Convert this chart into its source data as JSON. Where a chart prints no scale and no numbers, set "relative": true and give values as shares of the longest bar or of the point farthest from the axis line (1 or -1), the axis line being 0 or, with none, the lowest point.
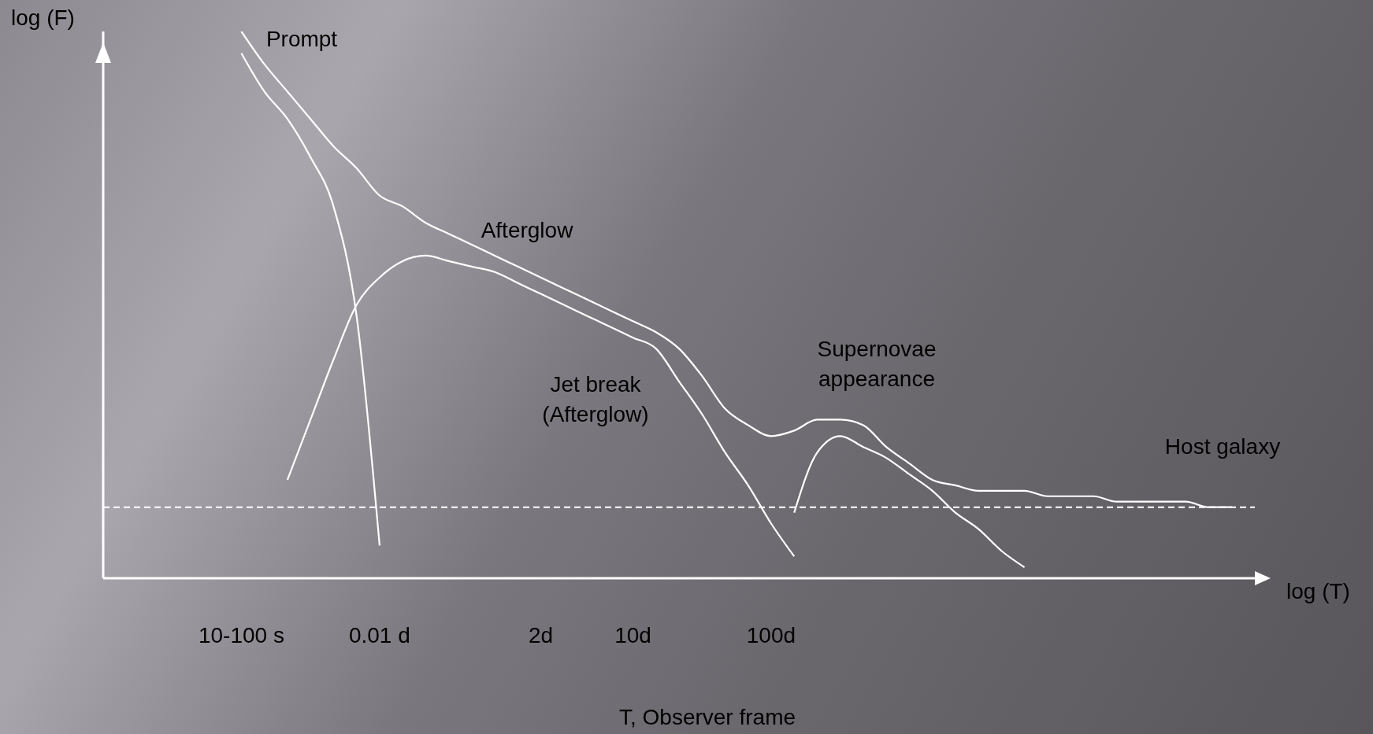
{
  "chart_data": {
    "type": "line",
    "relative": true,
    "xlabel": "log (T)",
    "ylabel": "log (F)",
    "categories": [
      null,
      null,
      null,
      null,
      null,
      null,
      "10-100 s",
      null,
      null,
      null,
      null,
      null,
      "0.01 d",
      null,
      null,
      null,
      null,
      null,
      null,
      "2d",
      null,
      null,
      null,
      "10d",
      null,
      null,
      null,
      null,
      null,
      "100d",
      null,
      null,
      null,
      null,
      null,
      null,
      null,
      null,
      null,
      null,
      null,
      null,
      null,
      null,
      null,
      null,
      null,
      null,
      null,
      null,
      null
    ],
    "series": [
      {
        "color": "#ffffff",
        "values": [
          null,
          null,
          null,
          null,
          null,
          null,
          1.0,
          0.94,
          0.89,
          0.84,
          0.79,
          0.75,
          0.7,
          0.68,
          0.65,
          0.63,
          0.61,
          0.59,
          0.57,
          0.55,
          0.53,
          0.51,
          0.49,
          0.47,
          0.45,
          0.42,
          0.37,
          0.31,
          0.28,
          0.26,
          0.27,
          0.29,
          0.29,
          0.28,
          0.24,
          0.21,
          0.18,
          0.17,
          0.16,
          0.16,
          0.16,
          0.15,
          0.15,
          0.15,
          0.14,
          0.14,
          0.14,
          0.14,
          0.13,
          0.13,
          null
        ]
      },
      {
        "color": "#ffffff",
        "values": [
          null,
          null,
          null,
          null,
          null,
          null,
          0.96,
          0.89,
          0.84,
          0.77,
          0.68,
          0.48,
          0.06,
          null,
          null,
          null,
          null,
          null,
          null,
          null,
          null,
          null,
          null,
          null,
          null,
          null,
          null,
          null,
          null,
          null,
          null,
          null,
          null,
          null,
          null,
          null,
          null,
          null,
          null,
          null,
          null,
          null,
          null,
          null,
          null,
          null,
          null,
          null,
          null,
          null,
          null
        ]
      },
      {
        "color": "#ffffff",
        "values": [
          null,
          null,
          null,
          null,
          null,
          null,
          null,
          null,
          0.18,
          0.29,
          0.4,
          0.5,
          0.55,
          0.58,
          0.59,
          0.58,
          0.57,
          0.56,
          0.54,
          0.52,
          0.5,
          0.48,
          0.46,
          0.44,
          0.42,
          0.36,
          0.3,
          0.23,
          0.17,
          0.1,
          0.04,
          null,
          null,
          null,
          null,
          null,
          null,
          null,
          null,
          null,
          null,
          null,
          null,
          null,
          null,
          null,
          null,
          null,
          null,
          null,
          null
        ]
      },
      {
        "color": "#ffffff",
        "values": [
          null,
          null,
          null,
          null,
          null,
          null,
          null,
          null,
          null,
          null,
          null,
          null,
          null,
          null,
          null,
          null,
          null,
          null,
          null,
          null,
          null,
          null,
          null,
          null,
          null,
          null,
          null,
          null,
          null,
          null,
          0.12,
          0.23,
          0.26,
          0.24,
          0.22,
          0.19,
          0.16,
          0.12,
          0.09,
          0.05,
          0.02,
          null,
          null,
          null,
          null,
          null,
          null,
          null,
          null,
          null,
          null
        ]
      }
    ],
    "ref_lines": [
      {
        "axis": "y",
        "value": 0.13,
        "label": "Host galaxy",
        "color": "#ffffff",
        "line_style": "dashed"
      }
    ],
    "annotations": [
      "Prompt",
      "Afterglow",
      "Jet break\n(Afterglow)",
      "Supernovae\nappearance",
      "T, Observer frame"
    ],
    "marker": "none"
  }
}
